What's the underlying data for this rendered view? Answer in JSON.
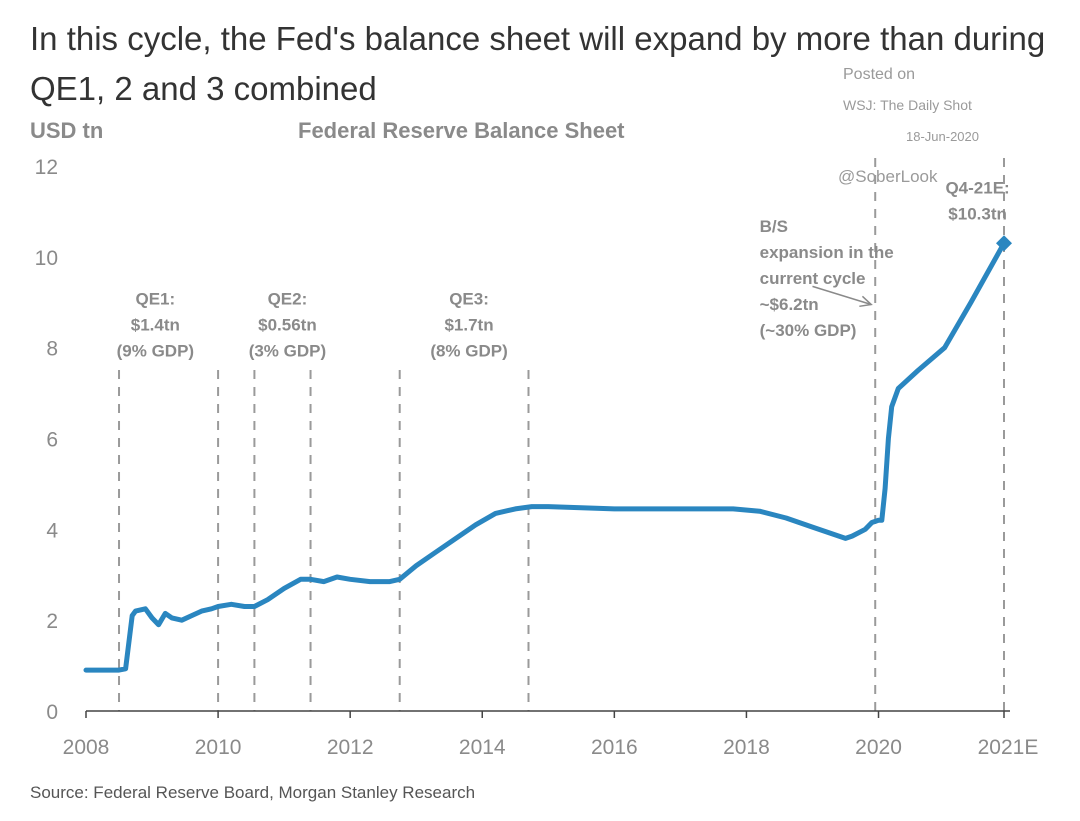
{
  "headline": "In this cycle, the Fed's balance sheet will expand by more than during QE1, 2 and 3 combined",
  "watermark": {
    "posted": "Posted on",
    "site": "WSJ: The Daily Shot",
    "date": "18-Jun-2020",
    "handle": "@SoberLook"
  },
  "source": "Source: Federal Reserve Board, Morgan Stanley Research",
  "colors": {
    "line": "#2a86c0",
    "text": "#8a8a8a",
    "headline": "#333333",
    "marker_lines": "#9a9a9a"
  },
  "chart_data": {
    "type": "line",
    "title": "Federal Reserve Balance Sheet",
    "ylabel": "USD tn",
    "xlabel": "",
    "xlim": [
      2008,
      2021.9
    ],
    "ylim": [
      0,
      12
    ],
    "y_ticks": [
      0,
      2,
      4,
      6,
      8,
      10,
      12
    ],
    "x_ticks": [
      {
        "x": 2008,
        "label": "2008"
      },
      {
        "x": 2010,
        "label": "2010"
      },
      {
        "x": 2012,
        "label": "2012"
      },
      {
        "x": 2014,
        "label": "2014"
      },
      {
        "x": 2016,
        "label": "2016"
      },
      {
        "x": 2018,
        "label": "2018"
      },
      {
        "x": 2020,
        "label": "2020"
      },
      {
        "x": 2021.9,
        "label": "2021E"
      }
    ],
    "grid": false,
    "series": [
      {
        "x": [
          2008.0,
          2008.5,
          2008.6,
          2008.7,
          2008.75,
          2008.9,
          2009.0,
          2009.1,
          2009.2,
          2009.3,
          2009.45,
          2009.6,
          2009.75,
          2009.9,
          2010.0,
          2010.2,
          2010.4,
          2010.55,
          2010.75,
          2011.0,
          2011.25,
          2011.4,
          2011.6,
          2011.8,
          2012.0,
          2012.3,
          2012.6,
          2012.75,
          2013.0,
          2013.3,
          2013.6,
          2013.9,
          2014.2,
          2014.5,
          2014.75,
          2015.0,
          2016.0,
          2017.0,
          2017.8,
          2018.2,
          2018.6,
          2019.0,
          2019.3,
          2019.5,
          2019.6,
          2019.8,
          2019.9,
          2020.0,
          2020.05,
          2020.1,
          2020.15,
          2020.2,
          2020.3,
          2020.6,
          2021.0,
          2021.4,
          2021.9
        ],
        "values": [
          0.9,
          0.9,
          0.93,
          2.1,
          2.2,
          2.25,
          2.05,
          1.9,
          2.15,
          2.05,
          2.0,
          2.1,
          2.2,
          2.25,
          2.3,
          2.35,
          2.3,
          2.3,
          2.45,
          2.7,
          2.9,
          2.9,
          2.85,
          2.95,
          2.9,
          2.85,
          2.85,
          2.9,
          3.2,
          3.5,
          3.8,
          4.1,
          4.35,
          4.45,
          4.5,
          4.5,
          4.45,
          4.45,
          4.45,
          4.4,
          4.25,
          4.05,
          3.9,
          3.8,
          3.85,
          4.0,
          4.15,
          4.2,
          4.2,
          4.9,
          6.0,
          6.7,
          7.1,
          7.5,
          8.0,
          9.0,
          10.3
        ]
      }
    ],
    "point_marker": {
      "x": 2021.9,
      "y": 10.3
    },
    "marker_lines": [
      2008.5,
      2010.0,
      2010.55,
      2011.4,
      2012.75,
      2014.7,
      2019.95,
      2021.9
    ],
    "annotations": [
      {
        "lines": [
          "QE1:",
          "$1.4tn",
          "(9% GDP)"
        ],
        "x": 2009.05,
        "y": 8.95
      },
      {
        "lines": [
          "QE2:",
          "$0.56tn",
          "(3% GDP)"
        ],
        "x": 2011.05,
        "y": 8.95
      },
      {
        "lines": [
          "QE3:",
          "$1.7tn",
          "(8% GDP)"
        ],
        "x": 2013.8,
        "y": 8.95
      },
      {
        "lines": [
          "B/S",
          "expansion in the",
          "current cycle",
          "~$6.2tn",
          "(~30% GDP)"
        ],
        "x": 2018.2,
        "y": 10.55,
        "anchor": "start"
      },
      {
        "lines": [
          "Q4-21E:",
          "$10.3tn"
        ],
        "x": 2021.5,
        "y": 11.4
      }
    ],
    "arrow": {
      "from": [
        2019.0,
        9.35
      ],
      "to": [
        2019.95,
        8.95
      ]
    }
  }
}
